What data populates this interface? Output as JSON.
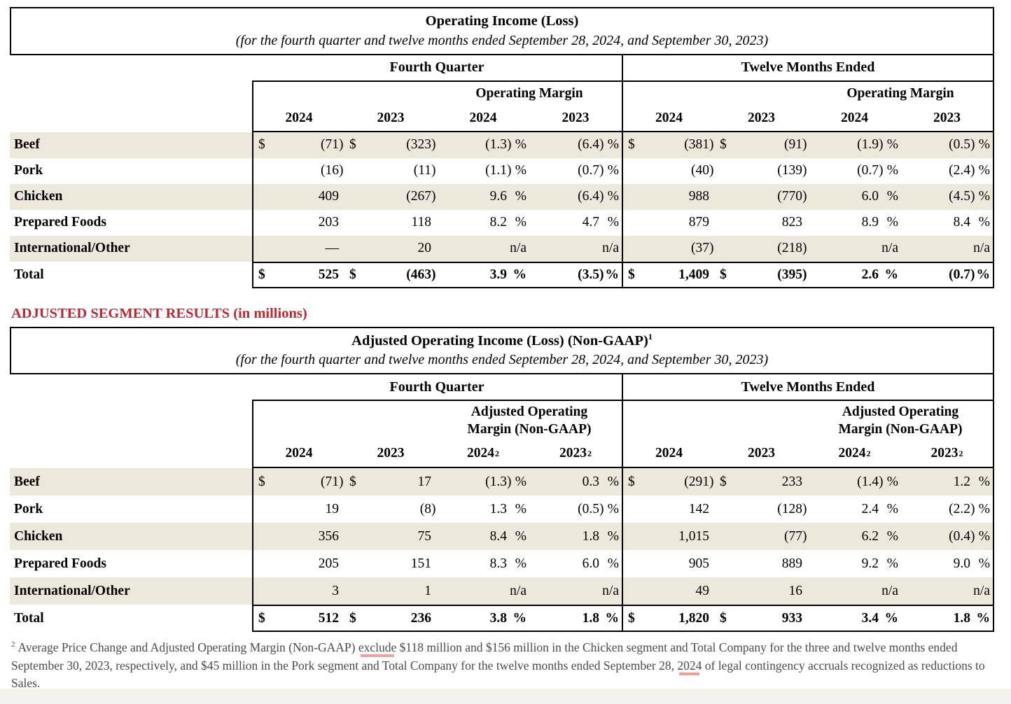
{
  "colors": {
    "accent_red": "#b52a33",
    "row_shade": "#ece8db",
    "footnote_gray": "#4a4a4a",
    "highlight_pink": "#f09f9f"
  },
  "section_heading": "ADJUSTED SEGMENT RESULTS (in millions)",
  "table1": {
    "title": "Operating Income (Loss)",
    "title_sup": "",
    "subtitle": "(for the fourth quarter and twelve months ended September 28, 2024, and September 30, 2023)",
    "group_headers": [
      "Fourth Quarter",
      "Twelve Months Ended"
    ],
    "margin_header_lines": [
      "Operating Margin"
    ],
    "year_headers": [
      {
        "label": "2024",
        "sup": ""
      },
      {
        "label": "2023",
        "sup": ""
      },
      {
        "label": "2024",
        "sup": ""
      },
      {
        "label": "2023",
        "sup": ""
      },
      {
        "label": "2024",
        "sup": ""
      },
      {
        "label": "2023",
        "sup": ""
      },
      {
        "label": "2024",
        "sup": ""
      },
      {
        "label": "2023",
        "sup": ""
      }
    ],
    "rows": [
      {
        "label": "Beef",
        "dollar": true,
        "values_fq": [
          "(71)",
          "(323)"
        ],
        "margins_fq": [
          "(1.3)",
          "(6.4)"
        ],
        "values_tm": [
          "(381)",
          "(91)"
        ],
        "margins_tm": [
          "(1.9)",
          "(0.5)"
        ]
      },
      {
        "label": "Pork",
        "dollar": false,
        "values_fq": [
          "(16)",
          "(11)"
        ],
        "margins_fq": [
          "(1.1)",
          "(0.7)"
        ],
        "values_tm": [
          "(40)",
          "(139)"
        ],
        "margins_tm": [
          "(0.7)",
          "(2.4)"
        ]
      },
      {
        "label": "Chicken",
        "dollar": false,
        "values_fq": [
          "409",
          "(267)"
        ],
        "margins_fq": [
          "9.6",
          "(6.4)"
        ],
        "values_tm": [
          "988",
          "(770)"
        ],
        "margins_tm": [
          "6.0",
          "(4.5)"
        ]
      },
      {
        "label": "Prepared Foods",
        "dollar": false,
        "values_fq": [
          "203",
          "118"
        ],
        "margins_fq": [
          "8.2",
          "4.7"
        ],
        "values_tm": [
          "879",
          "823"
        ],
        "margins_tm": [
          "8.9",
          "8.4"
        ]
      },
      {
        "label": "International/Other",
        "dollar": false,
        "values_fq": [
          "—",
          "20"
        ],
        "margins_fq": [
          "n/a",
          "n/a"
        ],
        "values_tm": [
          "(37)",
          "(218)"
        ],
        "margins_tm": [
          "n/a",
          "n/a"
        ]
      }
    ],
    "total": {
      "label": "Total",
      "dollar": true,
      "values_fq": [
        "525",
        "(463)"
      ],
      "margins_fq": [
        "3.9",
        "(3.5)"
      ],
      "values_tm": [
        "1,409",
        "(395)"
      ],
      "margins_tm": [
        "2.6",
        "(0.7)"
      ]
    }
  },
  "table2": {
    "title": "Adjusted Operating Income (Loss) (Non-GAAP)",
    "title_sup": "1",
    "subtitle": "(for the fourth quarter and twelve months ended September 28, 2024, and September 30, 2023)",
    "group_headers": [
      "Fourth Quarter",
      "Twelve Months Ended"
    ],
    "margin_header_lines": [
      "Adjusted Operating",
      "Margin (Non-GAAP)"
    ],
    "year_headers": [
      {
        "label": "2024",
        "sup": ""
      },
      {
        "label": "2023",
        "sup": ""
      },
      {
        "label": "2024",
        "sup": "2"
      },
      {
        "label": "2023",
        "sup": "2"
      },
      {
        "label": "2024",
        "sup": ""
      },
      {
        "label": "2023",
        "sup": ""
      },
      {
        "label": "2024",
        "sup": "2"
      },
      {
        "label": "2023",
        "sup": "2"
      }
    ],
    "rows": [
      {
        "label": "Beef",
        "dollar": true,
        "values_fq": [
          "(71)",
          "17"
        ],
        "margins_fq": [
          "(1.3)",
          "0.3"
        ],
        "values_tm": [
          "(291)",
          "233"
        ],
        "margins_tm": [
          "(1.4)",
          "1.2"
        ]
      },
      {
        "label": "Pork",
        "dollar": false,
        "values_fq": [
          "19",
          "(8)"
        ],
        "margins_fq": [
          "1.3",
          "(0.5)"
        ],
        "values_tm": [
          "142",
          "(128)"
        ],
        "margins_tm": [
          "2.4",
          "(2.2)"
        ]
      },
      {
        "label": "Chicken",
        "dollar": false,
        "values_fq": [
          "356",
          "75"
        ],
        "margins_fq": [
          "8.4",
          "1.8"
        ],
        "values_tm": [
          "1,015",
          "(77)"
        ],
        "margins_tm": [
          "6.2",
          "(0.4)"
        ]
      },
      {
        "label": "Prepared Foods",
        "dollar": false,
        "values_fq": [
          "205",
          "151"
        ],
        "margins_fq": [
          "8.3",
          "6.0"
        ],
        "values_tm": [
          "905",
          "889"
        ],
        "margins_tm": [
          "9.2",
          "9.0"
        ]
      },
      {
        "label": "International/Other",
        "dollar": false,
        "values_fq": [
          "3",
          "1"
        ],
        "margins_fq": [
          "n/a",
          "n/a"
        ],
        "values_tm": [
          "49",
          "16"
        ],
        "margins_tm": [
          "n/a",
          "n/a"
        ]
      }
    ],
    "total": {
      "label": "Total",
      "dollar": true,
      "values_fq": [
        "512",
        "236"
      ],
      "margins_fq": [
        "3.8",
        "1.8"
      ],
      "values_tm": [
        "1,820",
        "933"
      ],
      "margins_tm": [
        "3.4",
        "1.8"
      ]
    }
  },
  "footnote": {
    "sup": "2",
    "segments": [
      {
        "text": "Average Price Change and Adjusted Operating Margin (Non-GAAP) "
      },
      {
        "text": "exclude",
        "highlight": true
      },
      {
        "text": " $118 million and $156 million in the Chicken segment and Total Company for the three and twelve months ended September 30, 2023, respectively, and $45 million in the Pork segment and Total Company for the twelve months ended September 28, "
      },
      {
        "text": "2024",
        "highlight": true
      },
      {
        "text": " of legal contingency accruals recognized as reductions to Sales."
      }
    ]
  }
}
